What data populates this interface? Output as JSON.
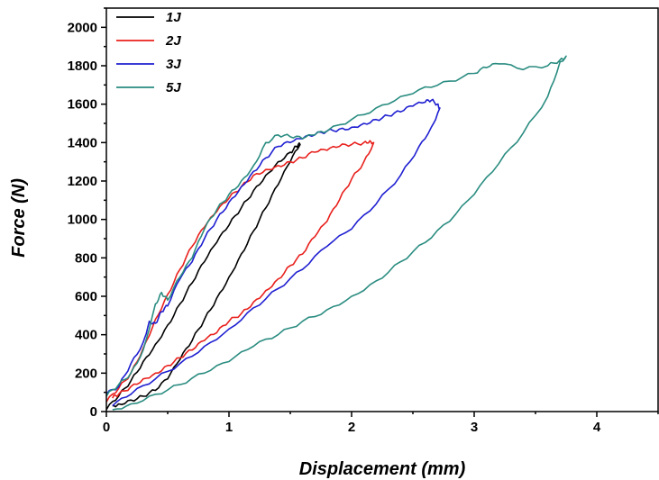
{
  "chart_data": {
    "type": "line",
    "xlabel": "Displacement (mm)",
    "ylabel": "Force (N)",
    "xlim": [
      0,
      4.5
    ],
    "ylim": [
      0,
      2100
    ],
    "xticks": [
      0,
      1,
      2,
      3,
      4
    ],
    "yticks": [
      0,
      200,
      400,
      600,
      800,
      1000,
      1200,
      1400,
      1600,
      1800,
      2000
    ],
    "grid": false,
    "legend_position": "top-left",
    "series": [
      {
        "name": "1J",
        "color": "#000000",
        "x": [
          0,
          0.1,
          0.2,
          0.3,
          0.4,
          0.5,
          0.6,
          0.7,
          0.8,
          0.9,
          1.0,
          1.1,
          1.2,
          1.3,
          1.4,
          1.5,
          1.55,
          1.58,
          1.5,
          1.4,
          1.3,
          1.2,
          1.1,
          1.0,
          0.9,
          0.8,
          0.7,
          0.6,
          0.5,
          0.4,
          0.3,
          0.2,
          0.1,
          0.05
        ],
        "y": [
          10,
          80,
          160,
          260,
          350,
          450,
          560,
          670,
          780,
          880,
          970,
          1060,
          1150,
          1230,
          1300,
          1350,
          1380,
          1390,
          1300,
          1180,
          1060,
          940,
          820,
          700,
          590,
          480,
          370,
          270,
          170,
          110,
          80,
          60,
          40,
          30
        ]
      },
      {
        "name": "2J",
        "color": "#e8201c",
        "x": [
          0,
          0.1,
          0.2,
          0.3,
          0.4,
          0.5,
          0.6,
          0.7,
          0.8,
          0.9,
          1.0,
          1.1,
          1.2,
          1.3,
          1.4,
          1.5,
          1.6,
          1.7,
          1.8,
          1.9,
          2.0,
          2.1,
          2.15,
          2.18,
          2.1,
          2.0,
          1.9,
          1.8,
          1.7,
          1.6,
          1.5,
          1.4,
          1.3,
          1.2,
          1.1,
          1.0,
          0.9,
          0.8,
          0.7,
          0.6,
          0.5,
          0.4,
          0.3,
          0.2,
          0.1,
          0.05
        ],
        "y": [
          50,
          120,
          200,
          330,
          480,
          610,
          740,
          860,
          960,
          1040,
          1110,
          1170,
          1230,
          1260,
          1280,
          1300,
          1320,
          1350,
          1360,
          1380,
          1390,
          1400,
          1410,
          1400,
          1300,
          1210,
          1100,
          990,
          910,
          820,
          760,
          690,
          630,
          570,
          510,
          470,
          410,
          370,
          320,
          280,
          240,
          200,
          170,
          130,
          90,
          70
        ]
      },
      {
        "name": "3J",
        "color": "#1f1fd1",
        "x": [
          0,
          0.1,
          0.2,
          0.3,
          0.35,
          0.4,
          0.45,
          0.5,
          0.6,
          0.7,
          0.8,
          0.9,
          1.0,
          1.1,
          1.2,
          1.3,
          1.4,
          1.5,
          1.6,
          1.7,
          1.8,
          1.9,
          2.0,
          2.1,
          2.2,
          2.3,
          2.4,
          2.5,
          2.6,
          2.65,
          2.7,
          2.72,
          2.65,
          2.55,
          2.4,
          2.2,
          2.0,
          1.8,
          1.6,
          1.4,
          1.2,
          1.0,
          0.8,
          0.6,
          0.4,
          0.2,
          0.05
        ],
        "y": [
          90,
          130,
          250,
          360,
          470,
          460,
          520,
          550,
          690,
          780,
          900,
          1000,
          1090,
          1170,
          1250,
          1320,
          1380,
          1400,
          1420,
          1440,
          1460,
          1470,
          1480,
          1500,
          1520,
          1540,
          1560,
          1590,
          1610,
          1620,
          1600,
          1580,
          1480,
          1380,
          1230,
          1080,
          950,
          860,
          740,
          640,
          540,
          430,
          340,
          250,
          170,
          90,
          30
        ]
      },
      {
        "name": "5J",
        "color": "#2a8c80",
        "x": [
          0,
          0.1,
          0.2,
          0.3,
          0.4,
          0.45,
          0.5,
          0.6,
          0.7,
          0.8,
          0.9,
          1.0,
          1.1,
          1.2,
          1.3,
          1.4,
          1.5,
          1.6,
          1.7,
          1.8,
          2.0,
          2.2,
          2.4,
          2.6,
          2.8,
          3.0,
          3.1,
          3.2,
          3.4,
          3.6,
          3.7,
          3.75,
          3.7,
          3.6,
          3.4,
          3.2,
          3.0,
          2.8,
          2.6,
          2.4,
          2.2,
          2.0,
          1.8,
          1.6,
          1.4,
          1.2,
          1.0,
          0.8,
          0.6,
          0.4,
          0.2,
          0.05
        ],
        "y": [
          80,
          140,
          200,
          320,
          560,
          620,
          580,
          700,
          800,
          950,
          1050,
          1130,
          1200,
          1280,
          1400,
          1440,
          1430,
          1420,
          1440,
          1460,
          1520,
          1580,
          1640,
          1690,
          1720,
          1760,
          1790,
          1810,
          1780,
          1800,
          1830,
          1850,
          1820,
          1640,
          1450,
          1290,
          1130,
          990,
          880,
          780,
          680,
          600,
          530,
          470,
          400,
          340,
          260,
          200,
          140,
          90,
          40,
          10
        ]
      }
    ]
  }
}
